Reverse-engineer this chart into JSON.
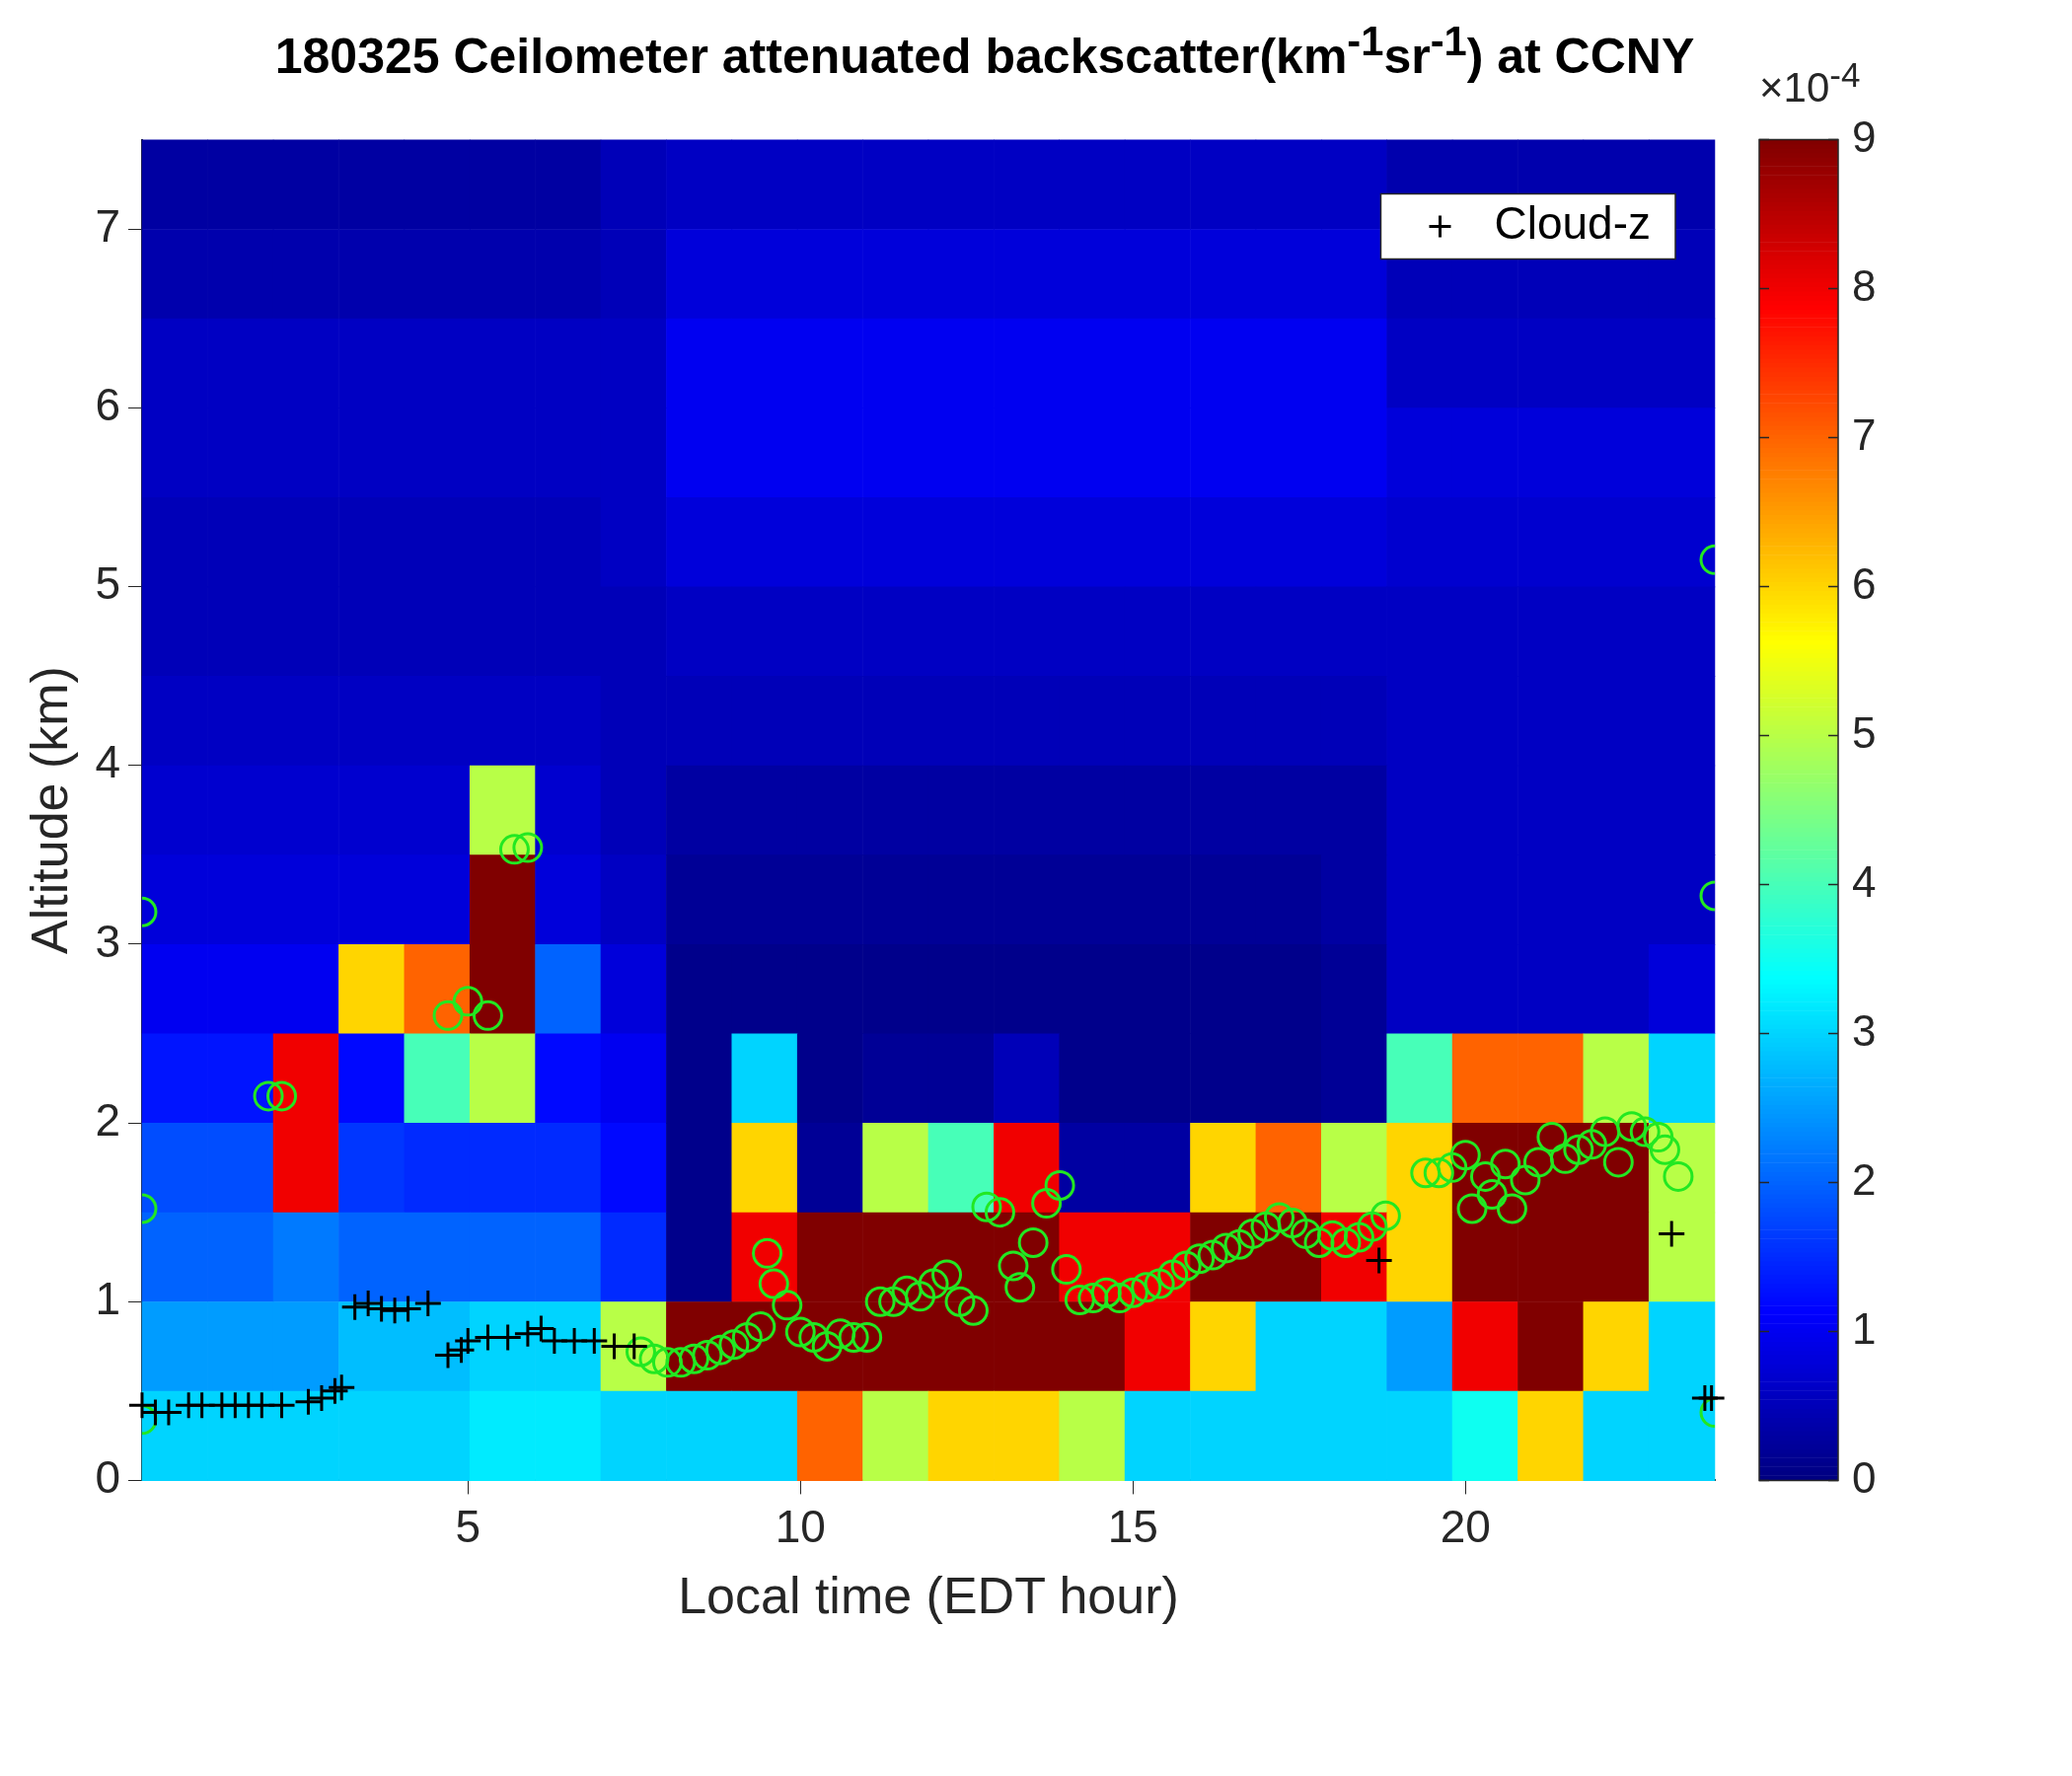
{
  "chart_data": {
    "type": "heatmap",
    "title": "180325 Ceilometer attenuated backscatter(km$^{-1}$sr$^{-1}$) at CCNY",
    "xlabel": "Local time (EDT hour)",
    "ylabel": "Altitude (km)",
    "clabel": "×10$^{-4}$",
    "x": [
      0.59,
      1.58,
      2.56,
      3.55,
      4.53,
      5.52,
      6.5,
      7.49,
      8.47,
      9.46,
      10.44,
      11.43,
      12.41,
      13.4,
      14.38,
      15.37,
      16.35,
      17.34,
      18.32,
      19.31,
      20.29,
      21.28,
      22.26,
      23.25
    ],
    "y": [
      7.25,
      6.75,
      6.25,
      5.75,
      5.25,
      4.75,
      4.25,
      3.75,
      3.25,
      2.75,
      2.25,
      1.75,
      1.25,
      0.75,
      0.25
    ],
    "cells": [
      [
        0.3,
        0.3,
        0.3,
        0.3,
        0.3,
        0.3,
        0.3,
        0.5,
        0.6,
        0.6,
        0.6,
        0.6,
        0.6,
        0.6,
        0.6,
        0.6,
        0.6,
        0.6,
        0.6,
        0.4,
        0.4,
        0.4,
        0.4,
        0.4
      ],
      [
        0.4,
        0.4,
        0.4,
        0.4,
        0.4,
        0.4,
        0.4,
        0.5,
        0.8,
        0.8,
        0.8,
        0.8,
        0.8,
        0.8,
        0.8,
        0.8,
        0.8,
        0.8,
        0.8,
        0.5,
        0.5,
        0.5,
        0.5,
        0.5
      ],
      [
        0.6,
        0.6,
        0.6,
        0.6,
        0.6,
        0.6,
        0.6,
        0.6,
        1,
        1,
        1,
        1,
        1,
        1,
        1,
        1,
        1,
        1,
        1,
        0.6,
        0.6,
        0.6,
        0.6,
        0.6
      ],
      [
        0.6,
        0.6,
        0.6,
        0.6,
        0.6,
        0.6,
        0.6,
        0.6,
        1,
        1,
        1,
        1,
        1,
        1,
        1,
        1,
        1,
        1,
        1,
        0.8,
        0.8,
        0.8,
        0.8,
        0.8
      ],
      [
        0.5,
        0.5,
        0.5,
        0.5,
        0.5,
        0.5,
        0.5,
        0.6,
        0.8,
        0.8,
        0.8,
        0.8,
        0.8,
        0.8,
        0.8,
        0.8,
        0.8,
        0.8,
        0.8,
        0.7,
        0.7,
        0.7,
        0.7,
        0.7
      ],
      [
        0.5,
        0.5,
        0.5,
        0.5,
        0.5,
        0.5,
        0.5,
        0.5,
        0.6,
        0.6,
        0.6,
        0.6,
        0.6,
        0.6,
        0.6,
        0.6,
        0.6,
        0.6,
        0.6,
        0.6,
        0.6,
        0.6,
        0.6,
        0.6
      ],
      [
        0.6,
        0.6,
        0.6,
        0.6,
        0.6,
        0.6,
        0.6,
        0.5,
        0.5,
        0.5,
        0.5,
        0.5,
        0.5,
        0.5,
        0.5,
        0.5,
        0.5,
        0.5,
        0.5,
        0.6,
        0.6,
        0.6,
        0.6,
        0.6
      ],
      [
        0.7,
        0.7,
        0.7,
        0.7,
        0.7,
        5,
        0.7,
        0.5,
        0.3,
        0.3,
        0.3,
        0.3,
        0.3,
        0.3,
        0.3,
        0.3,
        0.3,
        0.3,
        0.3,
        0.6,
        0.6,
        0.6,
        0.6,
        0.6
      ],
      [
        0.8,
        0.8,
        0.8,
        0.8,
        0.8,
        9,
        0.8,
        0.6,
        0.2,
        0.2,
        0.2,
        0.2,
        0.2,
        0.2,
        0.2,
        0.2,
        0.2,
        0.2,
        0.3,
        0.6,
        0.6,
        0.6,
        0.6,
        0.6
      ],
      [
        1,
        1,
        1,
        6,
        7,
        9,
        2,
        0.8,
        0.1,
        0.1,
        0.1,
        0.1,
        0.1,
        0.1,
        0.1,
        0.1,
        0.1,
        0.1,
        0.2,
        0.6,
        0.6,
        0.6,
        0.6,
        0.8
      ],
      [
        1.3,
        1.3,
        8,
        1.2,
        4,
        5,
        1.2,
        1,
        0.1,
        3,
        0.1,
        0.2,
        0.2,
        0.5,
        0.1,
        0.1,
        0.1,
        0.1,
        0.2,
        4,
        7,
        7,
        5,
        3
      ],
      [
        1.8,
        1.8,
        8,
        1.6,
        1.5,
        1.5,
        1.5,
        1.2,
        0.1,
        6,
        0.2,
        5,
        4,
        8,
        0.3,
        0.3,
        6,
        7,
        5,
        6,
        9,
        9,
        9,
        5
      ],
      [
        2,
        2,
        2.2,
        2,
        2,
        2,
        2,
        1.5,
        0.1,
        8,
        9,
        9,
        9,
        9,
        8,
        8,
        9,
        9,
        8,
        6,
        9,
        9,
        9,
        5
      ],
      [
        2.5,
        2.5,
        2.5,
        2.8,
        2.8,
        3,
        3,
        5,
        9,
        9,
        9,
        9,
        9,
        9,
        9,
        8,
        6,
        3,
        3,
        2.5,
        8,
        9,
        6,
        3
      ],
      [
        3,
        3,
        3,
        3,
        3,
        3.2,
        3.2,
        3,
        3,
        3,
        7,
        5,
        6,
        6,
        5,
        3,
        3,
        3,
        3,
        3,
        3.5,
        6,
        3,
        3
      ]
    ],
    "clim": [
      0,
      9
    ],
    "cticks": [
      0,
      1,
      2,
      3,
      4,
      5,
      6,
      7,
      8,
      9
    ],
    "xlim": [
      0.1,
      23.75
    ],
    "xticks": [
      5,
      10,
      15,
      20
    ],
    "ylim": [
      0,
      7.5
    ],
    "yticks": [
      0,
      1,
      2,
      3,
      4,
      5,
      6,
      7
    ],
    "legend": "top right",
    "series": [
      {
        "name": "Cloud-z",
        "type": "scatter",
        "marker": "cross",
        "color": "#000000",
        "x": [
          0.1,
          0.3,
          0.5,
          0.8,
          1.0,
          1.3,
          1.5,
          1.7,
          1.9,
          2.2,
          2.6,
          2.8,
          3.0,
          3.1,
          3.3,
          3.5,
          3.7,
          3.9,
          4.1,
          4.4,
          4.7,
          4.9,
          5.0,
          5.3,
          5.6,
          5.9,
          6.1,
          6.3,
          6.6,
          6.9,
          7.2,
          7.5,
          18.7,
          23.1,
          23.6,
          23.7
        ],
        "values": [
          0.42,
          0.38,
          0.38,
          0.42,
          0.42,
          0.42,
          0.42,
          0.42,
          0.42,
          0.42,
          0.44,
          0.46,
          0.5,
          0.52,
          0.97,
          0.99,
          0.96,
          0.95,
          0.96,
          0.99,
          0.7,
          0.73,
          0.78,
          0.8,
          0.8,
          0.82,
          0.85,
          0.78,
          0.78,
          0.78,
          0.75,
          0.75,
          1.23,
          1.38,
          0.46,
          0.46
        ]
      },
      {
        "type": "scatter",
        "marker": "circle",
        "color": "#22e822",
        "x": [
          0.1,
          0.1,
          0.1,
          2.0,
          2.2,
          4.7,
          5.0,
          5.3,
          5.7,
          5.9,
          7.6,
          7.8,
          8.0,
          8.2,
          8.4,
          8.6,
          8.8,
          9.0,
          9.2,
          9.4,
          9.5,
          9.6,
          9.8,
          10.0,
          10.2,
          10.4,
          10.6,
          10.8,
          11.0,
          11.2,
          11.4,
          11.6,
          11.8,
          12.0,
          12.2,
          12.4,
          12.6,
          12.8,
          13.0,
          13.2,
          13.3,
          13.5,
          13.7,
          13.9,
          14.0,
          14.2,
          14.4,
          14.6,
          14.8,
          15.0,
          15.2,
          15.4,
          15.6,
          15.8,
          16.0,
          16.2,
          16.4,
          16.6,
          16.8,
          17.0,
          17.2,
          17.4,
          17.6,
          17.8,
          18.0,
          18.2,
          18.4,
          18.6,
          18.8,
          19.4,
          19.6,
          19.8,
          20.0,
          20.1,
          20.3,
          20.4,
          20.6,
          20.7,
          20.9,
          21.1,
          21.3,
          21.5,
          21.7,
          21.9,
          22.1,
          22.3,
          22.5,
          22.7,
          22.9,
          23.0,
          23.2,
          23.75,
          23.75,
          23.75
        ],
        "values": [
          3.18,
          1.52,
          0.34,
          2.15,
          2.15,
          2.6,
          2.68,
          2.6,
          3.53,
          3.54,
          0.72,
          0.68,
          0.66,
          0.66,
          0.68,
          0.7,
          0.73,
          0.76,
          0.8,
          0.86,
          1.27,
          1.1,
          0.98,
          0.83,
          0.8,
          0.75,
          0.82,
          0.8,
          0.8,
          1.0,
          1.0,
          1.06,
          1.03,
          1.1,
          1.15,
          1.0,
          0.95,
          1.53,
          1.5,
          1.2,
          1.08,
          1.33,
          1.55,
          1.65,
          1.18,
          1.01,
          1.02,
          1.05,
          1.02,
          1.05,
          1.08,
          1.1,
          1.15,
          1.2,
          1.24,
          1.26,
          1.3,
          1.32,
          1.38,
          1.42,
          1.47,
          1.44,
          1.38,
          1.33,
          1.37,
          1.33,
          1.36,
          1.42,
          1.48,
          1.72,
          1.72,
          1.75,
          1.82,
          1.52,
          1.7,
          1.6,
          1.77,
          1.52,
          1.68,
          1.78,
          1.92,
          1.8,
          1.85,
          1.88,
          1.95,
          1.78,
          1.98,
          1.95,
          1.92,
          1.85,
          1.7,
          5.15,
          3.27,
          0.38
        ]
      }
    ]
  }
}
